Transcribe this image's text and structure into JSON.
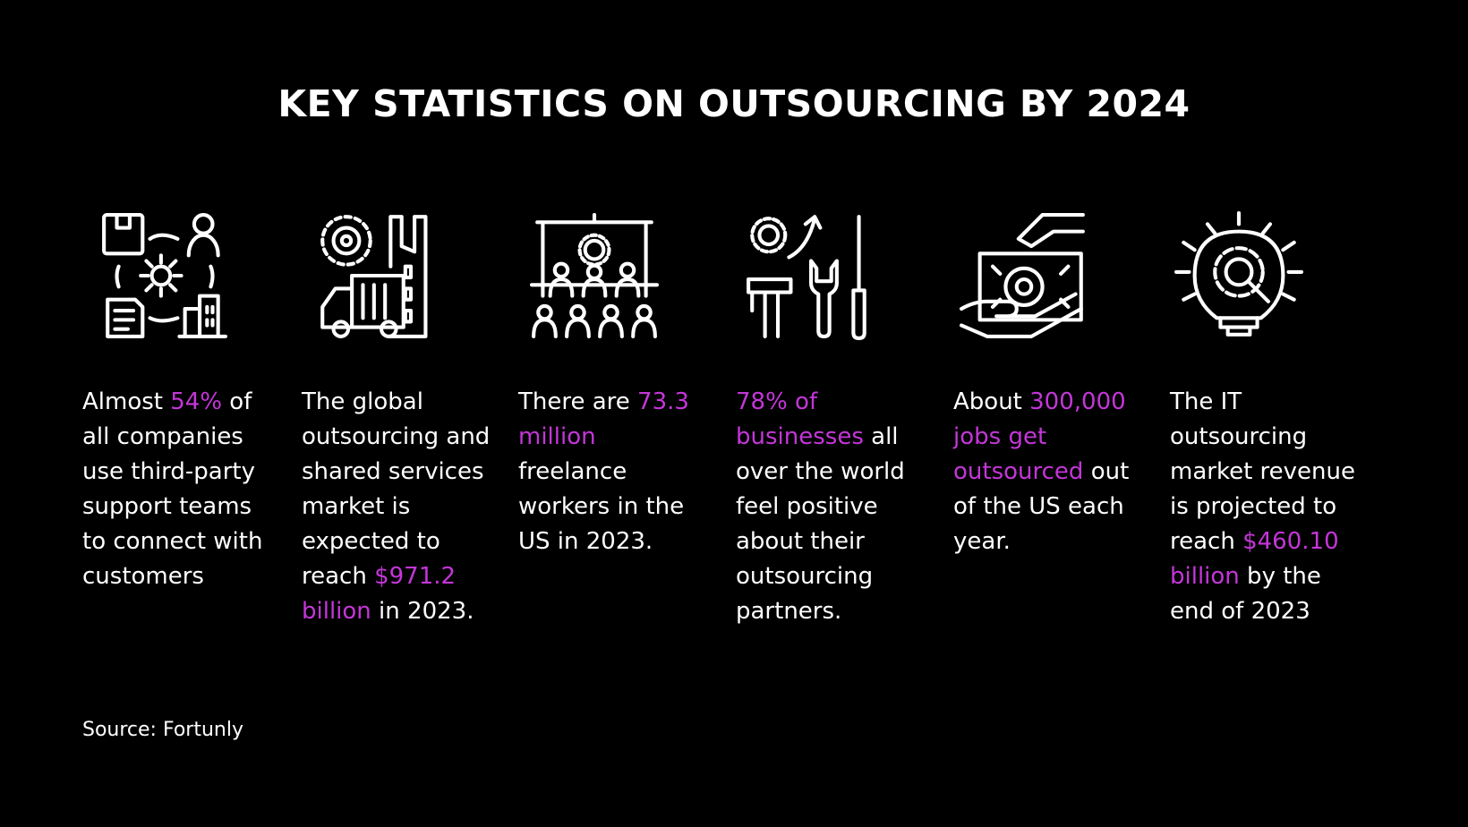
{
  "title": "KEY STATISTICS ON OUTSOURCING BY 2024",
  "accent_color": "#c436d8",
  "stats": [
    {
      "icon": "support-network-icon",
      "pre": "Almost ",
      "highlight": "54%",
      "post": " of all companies use third-party support teams to connect with customers"
    },
    {
      "icon": "factory-truck-icon",
      "pre": "The global outsourcing and shared services market is expected to reach ",
      "highlight": "$971.2 billion",
      "post": " in 2023."
    },
    {
      "icon": "presentation-audience-icon",
      "pre": "There are ",
      "highlight": "73.3 million",
      "post": " freelance workers in the US in 2023."
    },
    {
      "icon": "tools-growth-icon",
      "pre": "",
      "highlight": "78% of businesses",
      "post": " all over the world feel positive about their outsourcing partners."
    },
    {
      "icon": "hand-money-icon",
      "pre": "About ",
      "highlight": "300,000 jobs get outsourced",
      "post": " out of the US each year."
    },
    {
      "icon": "lightbulb-gear-icon",
      "pre": "The IT outsourcing market revenue is projected to reach ",
      "highlight": "$460.10 billion",
      "post": " by the end of 2023"
    }
  ],
  "source": "Source: Fortunly"
}
